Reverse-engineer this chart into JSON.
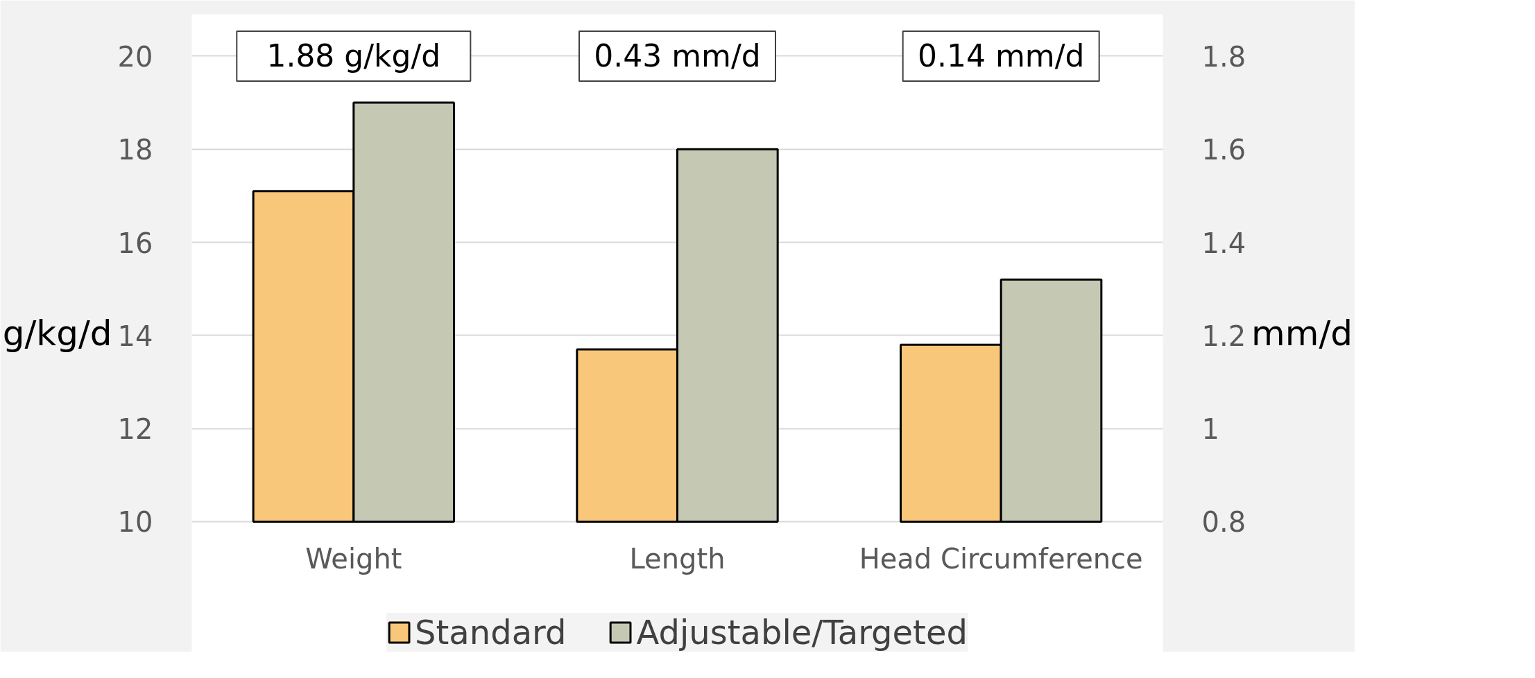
{
  "chart_data": {
    "type": "bar",
    "categories": [
      "Weight",
      "Length",
      "Head Circumference"
    ],
    "ylabel": "g/kg/d",
    "y2label": "mm/d",
    "ylim": [
      10,
      20
    ],
    "yticks": [
      10,
      12,
      14,
      16,
      18,
      20
    ],
    "y2lim": [
      0.8,
      1.8
    ],
    "y2ticks": [
      {
        "value": 0.8,
        "label": "0.8"
      },
      {
        "value": 1.0,
        "label": "1"
      },
      {
        "value": 1.2,
        "label": "1.2"
      },
      {
        "value": 1.4,
        "label": "1.4"
      },
      {
        "value": 1.6,
        "label": "1.6"
      },
      {
        "value": 1.8,
        "label": "1.8"
      }
    ],
    "series": [
      {
        "name": "Standard",
        "color": "#f9c77a",
        "axis": "y",
        "values": [
          17.1,
          null,
          null
        ]
      },
      {
        "name": "Adjustable/Targeted",
        "color": "#c5c8b3",
        "axis": "y",
        "values": [
          19.0,
          null,
          null
        ]
      },
      {
        "color": "#f9c77a",
        "axis": "y2",
        "values": [
          null,
          1.17,
          1.18
        ]
      },
      {
        "color": "#c5c8b3",
        "axis": "y2",
        "values": [
          null,
          1.6,
          1.32
        ]
      }
    ],
    "annotations": [
      "1.88 g/kg/d",
      "0.43 mm/d",
      "0.14 mm/d"
    ],
    "grid": "y",
    "legend": "bottom"
  }
}
